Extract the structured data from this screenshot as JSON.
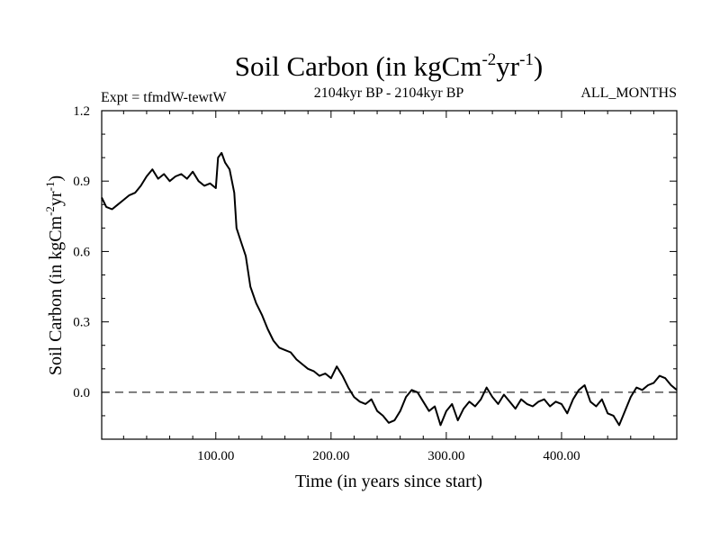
{
  "chart_data": {
    "type": "line",
    "title_main": "Soil Carbon (in kgCm",
    "title_sup1": "-2",
    "title_mid": "yr",
    "title_sup2": "-1",
    "title_end": ")",
    "subtitle_left": "Expt = tfmdW-tewtW",
    "subtitle_center": "2104kyr BP - 2104kyr BP",
    "subtitle_right": "ALL_MONTHS",
    "xlabel": "Time (in years since start)",
    "ylabel_main": "Soil Carbon (in kgCm",
    "ylabel_sup1": "-2",
    "ylabel_mid": "yr",
    "ylabel_sup2": "-1",
    "ylabel_end": ")",
    "xlim": [
      1,
      500
    ],
    "ylim": [
      -0.2,
      1.2
    ],
    "xticks": [
      100,
      200,
      300,
      400
    ],
    "xtick_labels": [
      "100.00",
      "200.00",
      "300.00",
      "400.00"
    ],
    "yticks": [
      0.0,
      0.3,
      0.6,
      0.9,
      1.2
    ],
    "ytick_labels": [
      "0.0",
      "0.3",
      "0.6",
      "0.9",
      "1.2"
    ],
    "reference_line": 0.0,
    "series": [
      {
        "name": "Soil Carbon",
        "color": "#000000",
        "x": [
          1,
          5,
          10,
          15,
          20,
          25,
          30,
          35,
          40,
          45,
          50,
          55,
          60,
          65,
          70,
          75,
          80,
          85,
          90,
          95,
          100,
          102,
          105,
          108,
          112,
          116,
          118,
          122,
          126,
          130,
          135,
          140,
          145,
          150,
          155,
          160,
          165,
          170,
          175,
          180,
          185,
          190,
          195,
          200,
          205,
          210,
          215,
          220,
          225,
          230,
          235,
          240,
          245,
          250,
          255,
          260,
          265,
          270,
          275,
          280,
          285,
          290,
          295,
          300,
          305,
          310,
          315,
          320,
          325,
          330,
          335,
          340,
          345,
          350,
          355,
          360,
          365,
          370,
          375,
          380,
          385,
          390,
          395,
          400,
          405,
          410,
          415,
          420,
          425,
          430,
          435,
          440,
          445,
          450,
          455,
          460,
          465,
          470,
          475,
          480,
          485,
          490,
          495,
          500
        ],
        "y": [
          0.83,
          0.79,
          0.78,
          0.8,
          0.82,
          0.84,
          0.85,
          0.88,
          0.92,
          0.95,
          0.91,
          0.93,
          0.9,
          0.92,
          0.93,
          0.91,
          0.94,
          0.9,
          0.88,
          0.89,
          0.87,
          1.0,
          1.02,
          0.98,
          0.95,
          0.85,
          0.7,
          0.64,
          0.58,
          0.45,
          0.38,
          0.33,
          0.27,
          0.22,
          0.19,
          0.18,
          0.17,
          0.14,
          0.12,
          0.1,
          0.09,
          0.07,
          0.08,
          0.06,
          0.11,
          0.07,
          0.02,
          -0.02,
          -0.04,
          -0.05,
          -0.03,
          -0.08,
          -0.1,
          -0.13,
          -0.12,
          -0.08,
          -0.02,
          0.01,
          0.0,
          -0.04,
          -0.08,
          -0.06,
          -0.14,
          -0.08,
          -0.05,
          -0.12,
          -0.07,
          -0.04,
          -0.06,
          -0.03,
          0.02,
          -0.02,
          -0.05,
          -0.01,
          -0.04,
          -0.07,
          -0.03,
          -0.05,
          -0.06,
          -0.04,
          -0.03,
          -0.06,
          -0.04,
          -0.05,
          -0.09,
          -0.03,
          0.01,
          0.03,
          -0.04,
          -0.06,
          -0.03,
          -0.09,
          -0.1,
          -0.14,
          -0.08,
          -0.02,
          0.02,
          0.01,
          0.03,
          0.04,
          0.07,
          0.06,
          0.03,
          0.01
        ]
      }
    ]
  }
}
